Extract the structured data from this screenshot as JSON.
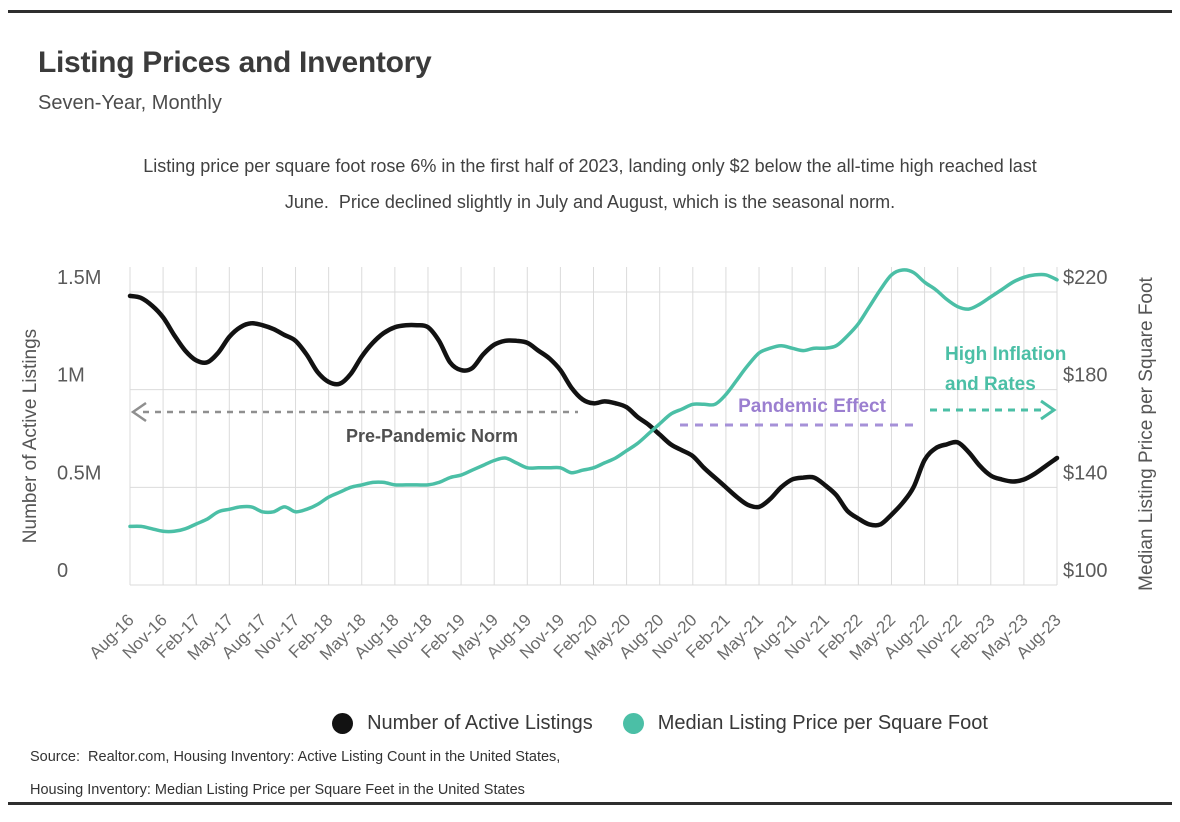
{
  "header": {
    "title": "Listing Prices and Inventory",
    "subtitle": "Seven-Year, Monthly"
  },
  "description": {
    "line1": "Listing price per square foot rose 6% in the first half of 2023, landing only $2 below the all-time high reached last",
    "line2": "June.  Price declined slightly in July and August, which is the seasonal norm."
  },
  "chart_data": {
    "type": "line",
    "title": "Listing Prices and Inventory",
    "subtitle": "Seven-Year, Monthly",
    "x_interval": "monthly",
    "x_start": "Aug-2016",
    "x_end": "Aug-2023",
    "grid": true,
    "legend_position": "bottom",
    "x_tick_labels": [
      "Aug-16",
      "Nov-16",
      "Feb-17",
      "May-17",
      "Aug-17",
      "Nov-17",
      "Feb-18",
      "May-18",
      "Aug-18",
      "Nov-18",
      "Feb-19",
      "May-19",
      "Aug-19",
      "Nov-19",
      "Feb-20",
      "May-20",
      "Aug-20",
      "Nov-20",
      "Feb-21",
      "May-21",
      "Aug-21",
      "Nov-21",
      "Feb-22",
      "May-22",
      "Aug-22",
      "Nov-22",
      "Feb-23",
      "May-23",
      "Aug-23"
    ],
    "left_axis": {
      "label": "Number of Active Listings",
      "tick_labels": [
        "1.5M",
        "1M",
        "0.5M",
        "0"
      ],
      "tick_values": [
        1.5,
        1.0,
        0.5,
        0
      ],
      "range": [
        0,
        1.5
      ],
      "units": "millions of listings"
    },
    "right_axis": {
      "label": "Median Listing Price per Square Foot",
      "tick_labels": [
        "$220",
        "$180",
        "$140",
        "$100"
      ],
      "tick_values": [
        220,
        180,
        140,
        100
      ],
      "range": [
        100,
        220
      ],
      "units": "USD per square foot"
    },
    "series": [
      {
        "name": "Number of Active Listings",
        "axis": "left",
        "color": "#121212",
        "values": [
          1.48,
          1.47,
          1.43,
          1.37,
          1.28,
          1.2,
          1.15,
          1.14,
          1.19,
          1.27,
          1.32,
          1.34,
          1.33,
          1.31,
          1.28,
          1.25,
          1.18,
          1.09,
          1.04,
          1.03,
          1.08,
          1.17,
          1.24,
          1.29,
          1.32,
          1.33,
          1.33,
          1.32,
          1.25,
          1.14,
          1.1,
          1.11,
          1.18,
          1.23,
          1.25,
          1.25,
          1.24,
          1.2,
          1.16,
          1.1,
          1.01,
          0.95,
          0.93,
          0.94,
          0.93,
          0.91,
          0.86,
          0.82,
          0.77,
          0.72,
          0.69,
          0.66,
          0.6,
          0.55,
          0.5,
          0.45,
          0.41,
          0.4,
          0.44,
          0.5,
          0.54,
          0.55,
          0.55,
          0.51,
          0.46,
          0.38,
          0.34,
          0.31,
          0.31,
          0.36,
          0.42,
          0.5,
          0.64,
          0.7,
          0.72,
          0.73,
          0.68,
          0.61,
          0.56,
          0.54,
          0.53,
          0.54,
          0.57,
          0.61,
          0.65
        ]
      },
      {
        "name": "Median Listing Price per Square Foot",
        "axis": "right",
        "color": "#4BBFA6",
        "values": [
          124,
          124,
          123,
          122,
          122,
          123,
          125,
          127,
          130,
          131,
          132,
          132,
          130,
          130,
          132,
          130,
          131,
          133,
          136,
          138,
          140,
          141,
          142,
          142,
          141,
          141,
          141,
          141,
          142,
          144,
          145,
          147,
          149,
          151,
          152,
          150,
          148,
          148,
          148,
          148,
          146,
          147,
          148,
          150,
          152,
          155,
          158,
          162,
          166,
          170,
          172,
          174,
          174,
          174,
          178,
          184,
          190,
          195,
          197,
          198,
          197,
          196,
          197,
          197,
          198,
          202,
          207,
          214,
          221,
          227,
          229,
          228,
          224,
          221,
          217,
          214,
          213,
          215,
          218,
          221,
          224,
          226,
          227,
          227,
          225
        ]
      }
    ],
    "annotations": [
      {
        "text": "Pre-Pandemic Norm",
        "text_lines": [
          "Pre-Pandemic Norm"
        ],
        "color": "#4f4f4f",
        "arrow": "left",
        "arrow_color": "#8f8f8f"
      },
      {
        "text": "Pandemic Effect",
        "text_lines": [
          "Pandemic Effect"
        ],
        "color": "#9B7FD0",
        "arrow": "none",
        "arrow_color": "#A691D8"
      },
      {
        "text": "High Inflation and Rates",
        "text_lines": [
          "High Inflation",
          "and Rates"
        ],
        "color": "#4BBFA6",
        "arrow": "right",
        "arrow_color": "#4BBFA6"
      }
    ],
    "grid_color": "#DBDBDB",
    "tick_text_color": "#6B6B6B",
    "axis_title_color": "#555555"
  },
  "legend": {
    "items": [
      {
        "label": "Number of Active Listings",
        "color": "#121212"
      },
      {
        "label": "Median Listing Price per Square Foot",
        "color": "#4BBFA6"
      }
    ]
  },
  "source": {
    "line1": "Source:  Realtor.com, Housing Inventory: Active Listing Count in the United States,",
    "line2": "Housing Inventory: Median Listing Price per Square Feet in the United States"
  }
}
